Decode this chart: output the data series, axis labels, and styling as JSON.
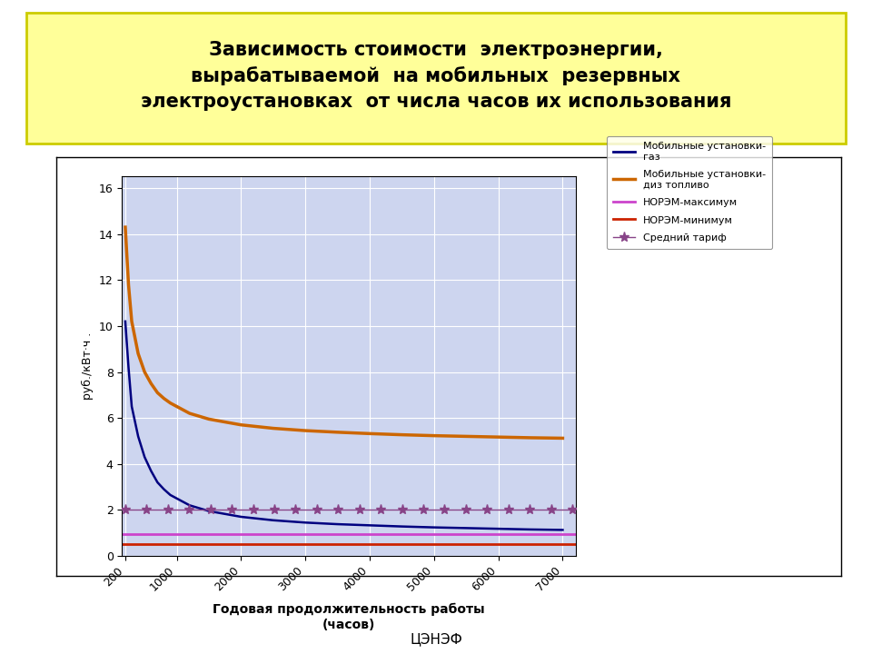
{
  "title_line1": "Зависимость стоимости  электроэнергии,",
  "title_line2": "вырабатываемой  на мобильных  резервных",
  "title_line3": "электроустановках  от числа часов их использования",
  "xlabel_line1": "Годовая продолжительность работы",
  "xlabel_line2": "(часов)",
  "ylabel": "руб./кВт·ч .",
  "footer": "ЦЭНЭФ",
  "title_bg_color": "#ffff99",
  "title_border_color": "#cccc00",
  "plot_bg_color": "#cdd5ef",
  "fig_bg_color": "#f0f0f0",
  "x_ticks": [
    200,
    1000,
    2000,
    3000,
    4000,
    5000,
    6000,
    7000
  ],
  "y_ticks": [
    0,
    2,
    4,
    6,
    8,
    10,
    12,
    14,
    16
  ],
  "ylim": [
    0,
    16.5
  ],
  "xlim": [
    150,
    7200
  ],
  "series": {
    "gas": {
      "color": "#000080",
      "label": "Мобильные установки-\nгаз",
      "x": [
        200,
        250,
        300,
        400,
        500,
        600,
        700,
        800,
        900,
        1000,
        1200,
        1500,
        2000,
        2500,
        3000,
        3500,
        4000,
        4500,
        5000,
        5500,
        6000,
        6500,
        7000
      ],
      "y": [
        10.2,
        8.2,
        6.5,
        5.2,
        4.3,
        3.7,
        3.2,
        2.9,
        2.65,
        2.5,
        2.2,
        1.95,
        1.7,
        1.55,
        1.45,
        1.38,
        1.33,
        1.28,
        1.24,
        1.21,
        1.18,
        1.15,
        1.13
      ]
    },
    "diesel": {
      "color": "#cc6600",
      "label": "Мобильные установки-\nдиз топливо",
      "x": [
        200,
        250,
        300,
        400,
        500,
        600,
        700,
        800,
        900,
        1000,
        1200,
        1500,
        2000,
        2500,
        3000,
        3500,
        4000,
        4500,
        5000,
        5500,
        6000,
        6500,
        7000
      ],
      "y": [
        14.3,
        11.8,
        10.2,
        8.8,
        8.0,
        7.5,
        7.1,
        6.85,
        6.65,
        6.5,
        6.2,
        5.95,
        5.7,
        5.55,
        5.45,
        5.38,
        5.32,
        5.27,
        5.23,
        5.2,
        5.17,
        5.14,
        5.12
      ]
    },
    "norem_max": {
      "color": "#cc44cc",
      "label": "НОРЭМ-максимум",
      "y_const": 0.95
    },
    "norem_min": {
      "color": "#cc2200",
      "label": "НОРЭМ-минимум",
      "y_const": 0.5
    },
    "avg_tariff": {
      "color": "#884488",
      "label": "Средний тариф",
      "y_const": 2.0,
      "marker": "*"
    }
  },
  "legend": {
    "gas_label1": "Мобильные установки-",
    "gas_label2": "газ",
    "diesel_label1": "Мобильные установки-",
    "diesel_label2": "диз топливо",
    "norem_max_label": "НОРЭМ-максимум",
    "norem_min_label": "НОРЭМ-минимум",
    "avg_label": "Средний тариф"
  }
}
